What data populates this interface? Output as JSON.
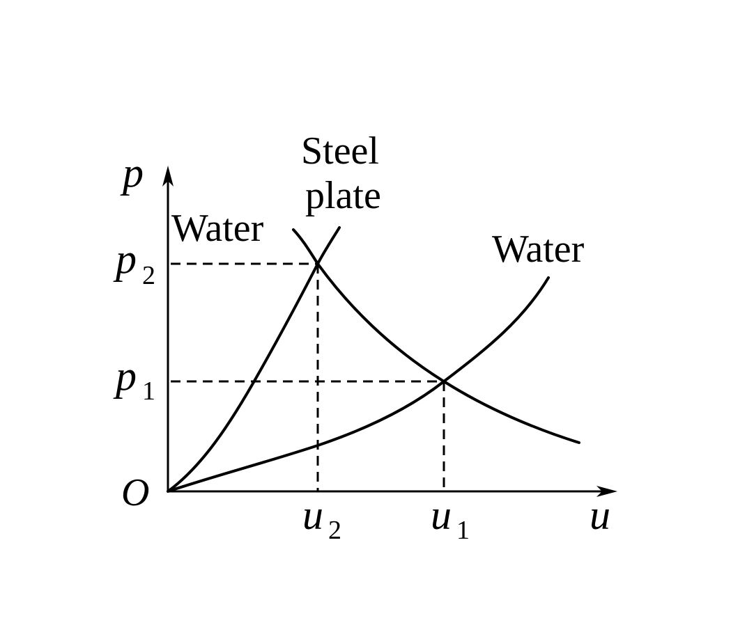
{
  "axes": {
    "x_label": "u",
    "y_label": "p",
    "origin_label": "O"
  },
  "ticks": {
    "p2": {
      "base": "p",
      "sub": "2"
    },
    "p1": {
      "base": "p",
      "sub": "1"
    },
    "u2": {
      "base": "u",
      "sub": "2"
    },
    "u1": {
      "base": "u",
      "sub": "1"
    }
  },
  "labels": {
    "water_left": "Water",
    "water_right": "Water",
    "steel_line1": "Steel",
    "steel_line2": "plate"
  },
  "colors": {
    "ink": "#000000",
    "background": "#ffffff"
  }
}
